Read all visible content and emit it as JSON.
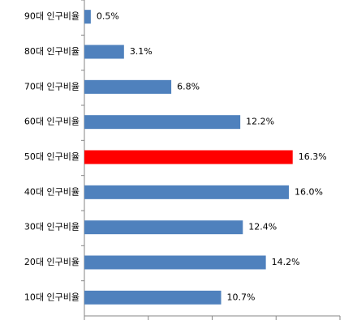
{
  "chart_data": {
    "type": "bar",
    "orientation": "horizontal",
    "categories": [
      "90대 인구비율",
      "80대 인구비율",
      "70대 인구비율",
      "60대 인구비율",
      "50대 인구비율",
      "40대 인구비율",
      "30대 인구비율",
      "20대 인구비율",
      "10대 인구비율"
    ],
    "values": [
      0.5,
      3.1,
      6.8,
      12.2,
      16.3,
      16.0,
      12.4,
      14.2,
      10.7
    ],
    "value_labels": [
      "0.5%",
      "3.1%",
      "6.8%",
      "12.2%",
      "16.3%",
      "16.0%",
      "12.4%",
      "14.2%",
      "10.7%"
    ],
    "colors": [
      "#4f81bd",
      "#4f81bd",
      "#4f81bd",
      "#4f81bd",
      "#ff0000",
      "#4f81bd",
      "#4f81bd",
      "#4f81bd",
      "#4f81bd"
    ],
    "xlim": [
      0,
      20
    ],
    "xticks": [
      0,
      5,
      10,
      15,
      20
    ]
  }
}
